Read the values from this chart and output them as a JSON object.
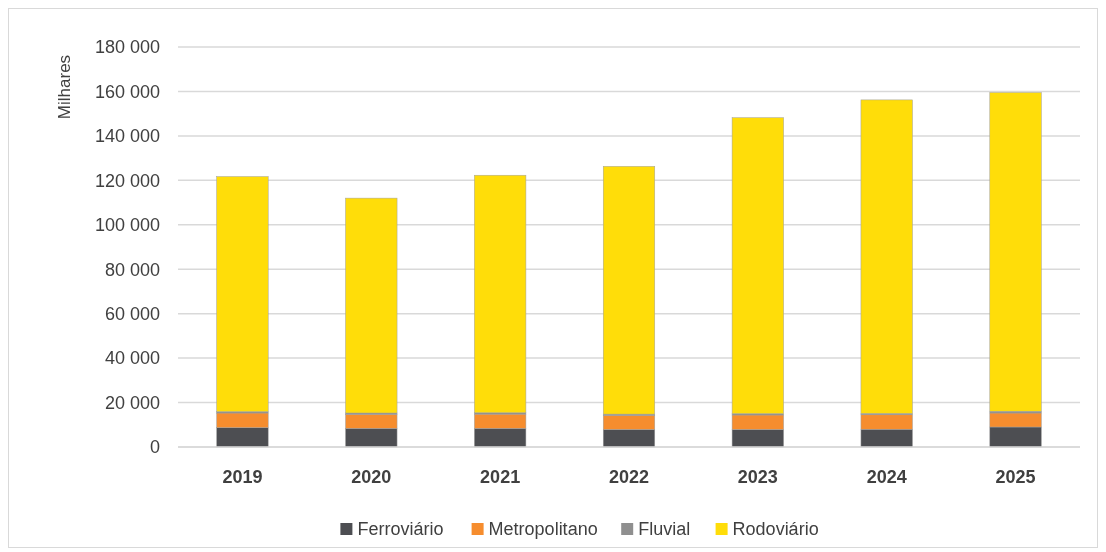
{
  "chart_data": {
    "type": "bar",
    "stacked": true,
    "ylabel": "Milhares",
    "categories": [
      "2019",
      "2020",
      "2021",
      "2022",
      "2023",
      "2024",
      "2025"
    ],
    "series": [
      {
        "name": "Ferroviário",
        "color": "#4d4e52",
        "values": [
          8700,
          8400,
          8400,
          7900,
          7900,
          8000,
          9000
        ]
      },
      {
        "name": "Metropolitano",
        "color": "#f68d2e",
        "values": [
          6600,
          6300,
          6400,
          6300,
          6500,
          6500,
          6300
        ]
      },
      {
        "name": "Fluvial",
        "color": "#8f8f8f",
        "values": [
          600,
          600,
          600,
          600,
          600,
          600,
          800
        ]
      },
      {
        "name": "Rodoviário",
        "color": "#ffdd09",
        "values": [
          105800,
          96700,
          106900,
          111500,
          133200,
          141100,
          143400
        ]
      }
    ],
    "ylim": [
      0,
      180000
    ],
    "yticks": [
      {
        "value": 0,
        "label": "0"
      },
      {
        "value": 20000,
        "label": "20 000"
      },
      {
        "value": 40000,
        "label": "40 000"
      },
      {
        "value": 60000,
        "label": "60 000"
      },
      {
        "value": 80000,
        "label": "80 000"
      },
      {
        "value": 100000,
        "label": "100 000"
      },
      {
        "value": 120000,
        "label": "120 000"
      },
      {
        "value": 140000,
        "label": "140 000"
      },
      {
        "value": 160000,
        "label": "160 000"
      },
      {
        "value": 180000,
        "label": "180 000"
      }
    ],
    "grid": "y",
    "legend": "bottom"
  }
}
